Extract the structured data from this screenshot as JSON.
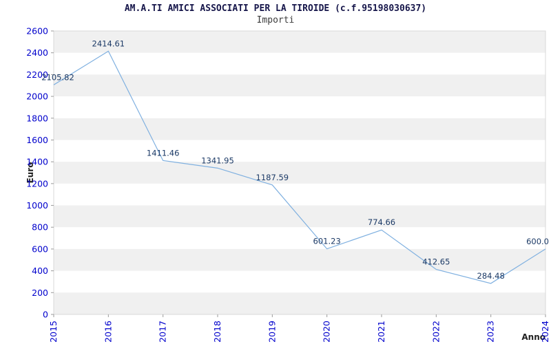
{
  "chart_data": {
    "type": "line",
    "title": "AM.A.TI AMICI ASSOCIATI PER LA TIROIDE (c.f.95198030637)",
    "subtitle": "Importi",
    "xlabel": "Anno",
    "ylabel": "Euro",
    "categories": [
      "2015",
      "2016",
      "2017",
      "2018",
      "2019",
      "2020",
      "2021",
      "2022",
      "2023",
      "2024"
    ],
    "values": [
      2105.82,
      2414.61,
      1411.46,
      1341.95,
      1187.59,
      601.23,
      774.66,
      412.65,
      284.48,
      600.0
    ],
    "point_labels": [
      "2105.82",
      "2414.61",
      "1411.46",
      "1341.95",
      "1187.59",
      "601.23",
      "774.66",
      "412.65",
      "284.48",
      "600.0"
    ],
    "ylim": [
      0,
      2600
    ],
    "ytick_step": 200,
    "grid": "horizontal-bands",
    "legend": "none",
    "colors": {
      "line": "#7fb0e0",
      "tick_label": "#0000cc",
      "point_label": "#1c3a66",
      "band": "#f0f0f0",
      "frame": "#d8d8d8",
      "tick_mark": "#9a9a9a"
    }
  }
}
